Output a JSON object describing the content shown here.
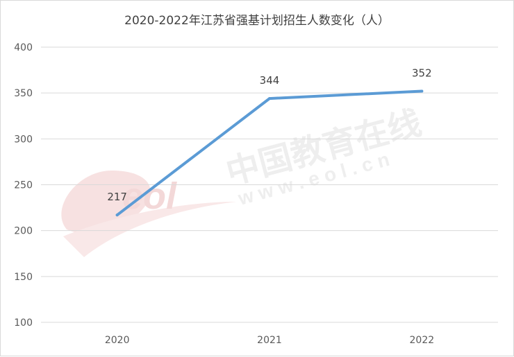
{
  "chart_data": {
    "type": "line",
    "title": "2020-2022年江苏省强基计划招生人数变化（人）",
    "categories": [
      "2020",
      "2021",
      "2022"
    ],
    "series": [
      {
        "values": [
          217,
          344,
          352
        ]
      }
    ],
    "data_labels": [
      "217",
      "344",
      "352"
    ],
    "ylim": [
      100,
      400
    ],
    "yticks": [
      100,
      150,
      200,
      250,
      300,
      350,
      400
    ],
    "ytick_labels": [
      "100",
      "150",
      "200",
      "250",
      "300",
      "350",
      "400"
    ],
    "grid": true,
    "legend": "none",
    "line_color": "#5b9bd5",
    "gridline_color": "#d9d9d9",
    "watermark_text": [
      "中国教育在线",
      "w w w . e o l . c n",
      "eol"
    ]
  }
}
